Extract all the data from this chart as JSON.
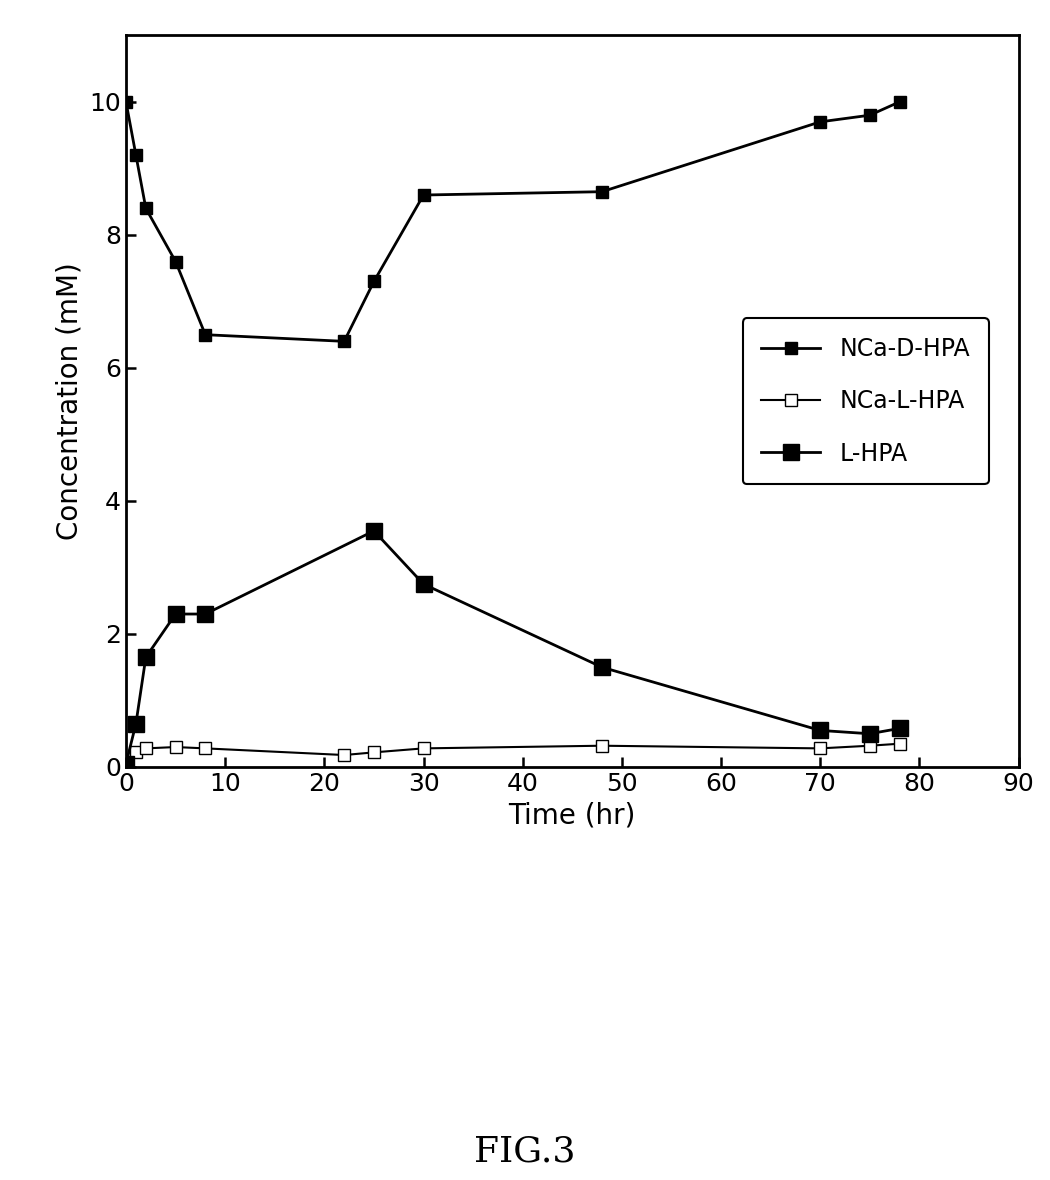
{
  "NCaD_x": [
    0,
    1,
    2,
    5,
    8,
    22,
    25,
    30,
    48,
    70,
    75,
    78
  ],
  "NCaD_y": [
    10.0,
    9.2,
    8.4,
    7.6,
    6.5,
    6.4,
    7.3,
    8.6,
    8.65,
    9.7,
    9.8,
    10.0
  ],
  "NCaL_x": [
    0,
    1,
    2,
    5,
    8,
    22,
    25,
    30,
    48,
    70,
    75,
    78
  ],
  "NCaL_y": [
    0.05,
    0.22,
    0.28,
    0.3,
    0.28,
    0.18,
    0.22,
    0.28,
    0.32,
    0.28,
    0.32,
    0.35
  ],
  "LHPA_x": [
    0,
    1,
    2,
    5,
    8,
    25,
    30,
    48,
    70,
    75,
    78
  ],
  "LHPA_y": [
    0.05,
    0.65,
    1.65,
    2.3,
    2.3,
    3.55,
    2.75,
    1.5,
    0.55,
    0.5,
    0.58
  ],
  "xlabel": "Time (hr)",
  "ylabel": "Concentration (mM)",
  "legend_NCaD": "NCa-D-HPA",
  "legend_NCaL": "NCa-L-HPA",
  "legend_LHPA": "L-HPA",
  "fig_label": "FIG.3",
  "xlim": [
    0,
    90
  ],
  "ylim": [
    0,
    11
  ],
  "xticks": [
    0,
    10,
    20,
    30,
    40,
    50,
    60,
    70,
    80,
    90
  ],
  "yticks": [
    0,
    2,
    4,
    6,
    8,
    10
  ],
  "line_color": "#000000",
  "background_color": "#ffffff",
  "fig_width": 10.5,
  "fig_height": 11.8
}
